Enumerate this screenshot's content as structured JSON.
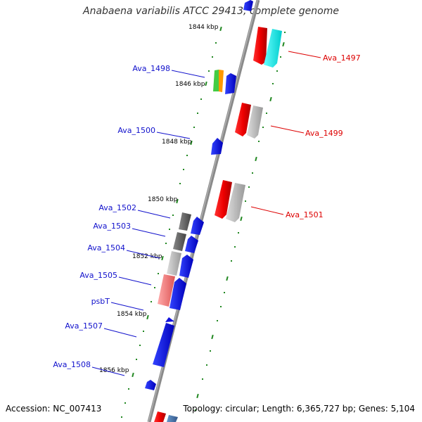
{
  "title": "Anabaena variabilis ATCC 29413, complete genome",
  "footer": {
    "accession": "Accession: NC_007413",
    "topology": "Topology: circular; Length: 6,365,727 bp; Genes: 5,104"
  },
  "ticks": [
    "1844 kbp",
    "1846 kbp",
    "1848 kbp",
    "1850 kbp",
    "1852 kbp",
    "1854 kbp",
    "1856 kbp"
  ],
  "genes": [
    {
      "name": "Ava_1497",
      "color": "#dd0000"
    },
    {
      "name": "Ava_1498",
      "color": "#1111cc"
    },
    {
      "name": "Ava_1499",
      "color": "#dd0000"
    },
    {
      "name": "Ava_1500",
      "color": "#1111cc"
    },
    {
      "name": "Ava_1501",
      "color": "#dd0000"
    },
    {
      "name": "Ava_1502",
      "color": "#1111cc"
    },
    {
      "name": "Ava_1503",
      "color": "#1111cc"
    },
    {
      "name": "Ava_1504",
      "color": "#1111cc"
    },
    {
      "name": "Ava_1505",
      "color": "#1111cc"
    },
    {
      "name": "psbT",
      "color": "#1111cc"
    },
    {
      "name": "Ava_1507",
      "color": "#1111cc"
    },
    {
      "name": "Ava_1508",
      "color": "#1111cc"
    }
  ],
  "colors": {
    "backbone": "#888888",
    "tick": "#228822",
    "forward_label": "#dd0000",
    "reverse_label": "#1111cc"
  }
}
